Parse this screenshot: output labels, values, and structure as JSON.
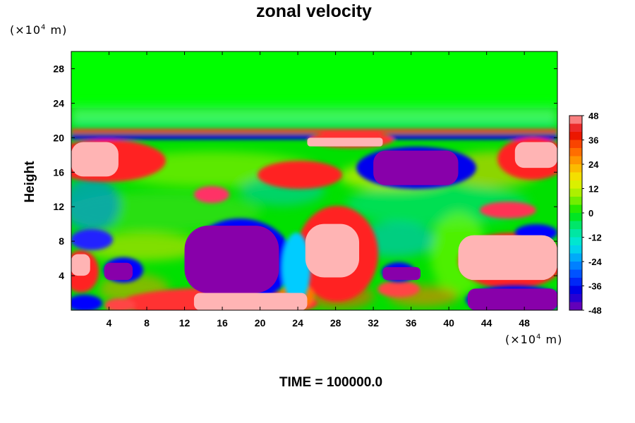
{
  "chart_data": {
    "type": "heatmap",
    "title": "zonal velocity",
    "ylabel": "Height",
    "xlabel": "",
    "x_unit": {
      "prefix": "(×10",
      "exp": "4",
      "suffix": " m)"
    },
    "y_unit": {
      "prefix": "(×10",
      "exp": "4",
      "suffix": " m)"
    },
    "xlim": [
      0,
      51.5
    ],
    "ylim": [
      0,
      30
    ],
    "x_ticks": [
      "4",
      "8",
      "12",
      "16",
      "20",
      "24",
      "28",
      "32",
      "36",
      "40",
      "44",
      "48"
    ],
    "y_ticks": [
      "4",
      "8",
      "12",
      "16",
      "20",
      "24",
      "28"
    ],
    "colorbar": {
      "range": [
        -48,
        48
      ],
      "levels": 24,
      "tick_labels": [
        "48",
        "36",
        "24",
        "12",
        "0",
        "-12",
        "-24",
        "-36",
        "-48"
      ]
    },
    "regions": [
      {
        "value": 48,
        "x": [
          0,
          5
        ],
        "y": [
          15.5,
          19.5
        ]
      },
      {
        "value": 48,
        "x": [
          24.8,
          30.5
        ],
        "y": [
          3.8,
          10
        ]
      },
      {
        "value": 48,
        "x": [
          41,
          51.5
        ],
        "y": [
          3.5,
          8.7
        ]
      },
      {
        "value": 48,
        "x": [
          13,
          25
        ],
        "y": [
          0,
          2
        ]
      },
      {
        "value": 48,
        "x": [
          25,
          33
        ],
        "y": [
          19,
          20
        ]
      },
      {
        "value": 48,
        "x": [
          47,
          51.5
        ],
        "y": [
          16.5,
          19.5
        ]
      },
      {
        "value": 48,
        "x": [
          0,
          2
        ],
        "y": [
          4,
          6.5
        ]
      },
      {
        "value": -48,
        "x": [
          12,
          22
        ],
        "y": [
          2,
          9.8
        ]
      },
      {
        "value": -48,
        "x": [
          32,
          41
        ],
        "y": [
          14.5,
          18.5
        ]
      },
      {
        "value": -48,
        "x": [
          42,
          51.5
        ],
        "y": [
          0,
          2.5
        ]
      },
      {
        "value": -48,
        "x": [
          3.5,
          6.5
        ],
        "y": [
          3.5,
          5.5
        ]
      },
      {
        "value": -48,
        "x": [
          33,
          37
        ],
        "y": [
          3.5,
          5
        ]
      }
    ]
  },
  "footer": {
    "time_label": "TIME = 100000.0"
  }
}
